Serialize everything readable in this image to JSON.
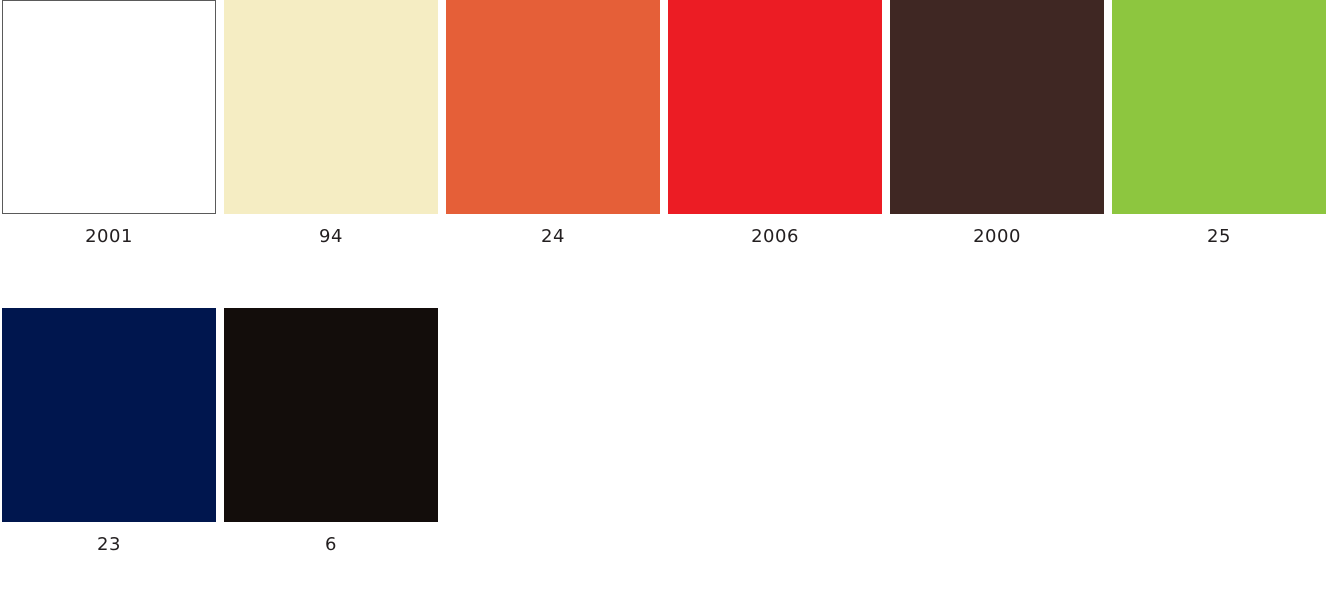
{
  "swatches": [
    {
      "code": "2001",
      "color": "#ffffff",
      "outlined": true
    },
    {
      "code": "94",
      "color": "#f5edc3",
      "outlined": false
    },
    {
      "code": "24",
      "color": "#e55f38",
      "outlined": false
    },
    {
      "code": "2006",
      "color": "#ec1c24",
      "outlined": false
    },
    {
      "code": "2000",
      "color": "#3f2723",
      "outlined": false
    },
    {
      "code": "25",
      "color": "#8dc63f",
      "outlined": false
    },
    {
      "code": "23",
      "color": "#00164e",
      "outlined": false
    },
    {
      "code": "6",
      "color": "#130d0b",
      "outlined": false
    }
  ]
}
